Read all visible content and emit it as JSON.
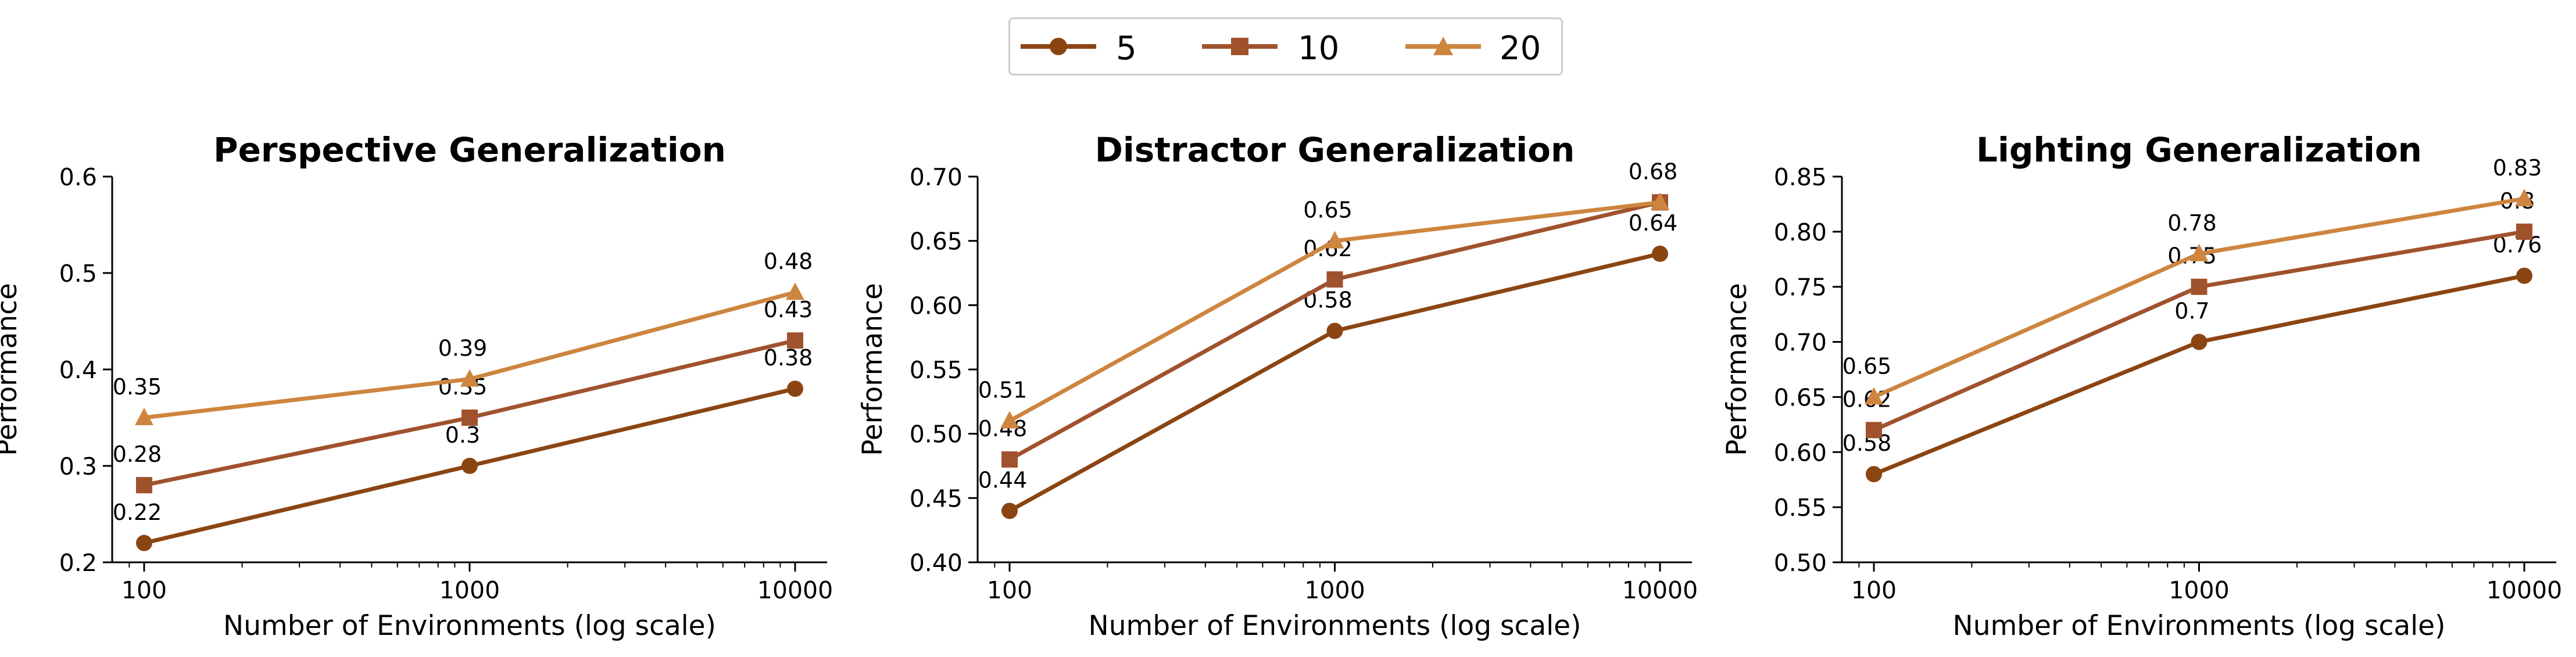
{
  "legend": {
    "entries": [
      {
        "label": "5",
        "color": "#8B4513",
        "marker": "circle"
      },
      {
        "label": "10",
        "color": "#A0522D",
        "marker": "square"
      },
      {
        "label": "20",
        "color": "#CD853F",
        "marker": "triangle"
      }
    ]
  },
  "chart_data": [
    {
      "type": "line",
      "title": "Perspective Generalization",
      "xlabel": "Number of Environments (log scale)",
      "ylabel": "Performance",
      "xscale": "log",
      "x": [
        100,
        1000,
        10000
      ],
      "x_tick_labels": [
        "100",
        "1000",
        "10000"
      ],
      "ylim": [
        0.2,
        0.6
      ],
      "y_ticks": [
        0.2,
        0.3,
        0.4,
        0.5,
        0.6
      ],
      "y_tick_labels": [
        "0.2",
        "0.3",
        "0.4",
        "0.5",
        "0.6"
      ],
      "grid": false,
      "series": [
        {
          "name": "5",
          "values": [
            0.22,
            0.3,
            0.38
          ],
          "value_labels": [
            "0.22",
            "0.3",
            "0.38"
          ]
        },
        {
          "name": "10",
          "values": [
            0.28,
            0.35,
            0.43
          ],
          "value_labels": [
            "0.28",
            "0.35",
            "0.43"
          ]
        },
        {
          "name": "20",
          "values": [
            0.35,
            0.39,
            0.48
          ],
          "value_labels": [
            "0.35",
            "0.39",
            "0.48"
          ]
        }
      ]
    },
    {
      "type": "line",
      "title": "Distractor Generalization",
      "xlabel": "Number of Environments (log scale)",
      "ylabel": "Performance",
      "xscale": "log",
      "x": [
        100,
        1000,
        10000
      ],
      "x_tick_labels": [
        "100",
        "1000",
        "10000"
      ],
      "ylim": [
        0.4,
        0.7
      ],
      "y_ticks": [
        0.4,
        0.45,
        0.5,
        0.55,
        0.6,
        0.65,
        0.7
      ],
      "y_tick_labels": [
        "0.40",
        "0.45",
        "0.50",
        "0.55",
        "0.60",
        "0.65",
        "0.70"
      ],
      "grid": false,
      "series": [
        {
          "name": "5",
          "values": [
            0.44,
            0.58,
            0.64
          ],
          "value_labels": [
            "0.44",
            "0.58",
            "0.64"
          ]
        },
        {
          "name": "10",
          "values": [
            0.48,
            0.62,
            0.68
          ],
          "value_labels": [
            "0.48",
            "0.62",
            ""
          ]
        },
        {
          "name": "20",
          "values": [
            0.51,
            0.65,
            0.68
          ],
          "value_labels": [
            "0.51",
            "0.65",
            "0.68"
          ]
        }
      ]
    },
    {
      "type": "line",
      "title": "Lighting Generalization",
      "xlabel": "Number of Environments (log scale)",
      "ylabel": "Performance",
      "xscale": "log",
      "x": [
        100,
        1000,
        10000
      ],
      "x_tick_labels": [
        "100",
        "1000",
        "10000"
      ],
      "ylim": [
        0.5,
        0.85
      ],
      "y_ticks": [
        0.5,
        0.55,
        0.6,
        0.65,
        0.7,
        0.75,
        0.8,
        0.85
      ],
      "y_tick_labels": [
        "0.50",
        "0.55",
        "0.60",
        "0.65",
        "0.70",
        "0.75",
        "0.80",
        "0.85"
      ],
      "grid": false,
      "series": [
        {
          "name": "5",
          "values": [
            0.58,
            0.7,
            0.76
          ],
          "value_labels": [
            "0.58",
            "0.7",
            "0.76"
          ]
        },
        {
          "name": "10",
          "values": [
            0.62,
            0.75,
            0.8
          ],
          "value_labels": [
            "0.62",
            "0.75",
            "0.8"
          ]
        },
        {
          "name": "20",
          "values": [
            0.65,
            0.78,
            0.83
          ],
          "value_labels": [
            "0.65",
            "0.78",
            "0.83"
          ]
        }
      ]
    }
  ]
}
